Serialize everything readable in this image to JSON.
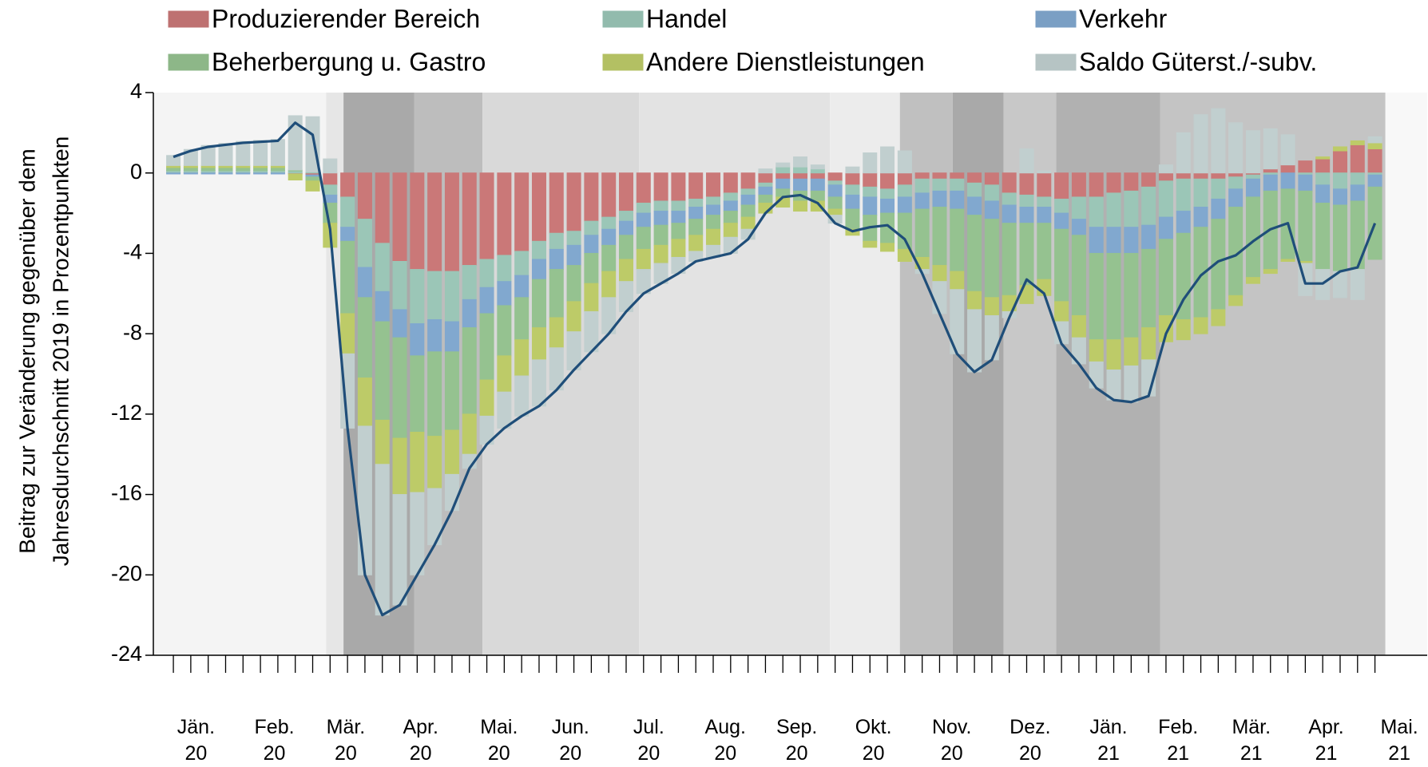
{
  "chart_data": {
    "type": "stacked-bar-line",
    "ylabel": [
      "Beitrag zur Veränderung gegenüber dem",
      "Jahresdurchschnitt 2019 in Prozentpunkten"
    ],
    "categories": [
      null,
      null,
      null,
      null,
      null,
      null,
      null,
      null,
      null,
      null,
      null,
      null,
      null,
      null,
      null,
      null,
      null,
      null,
      null,
      null,
      null,
      null,
      null,
      null,
      null,
      null,
      null,
      null,
      null,
      null,
      null,
      null,
      null,
      null,
      null,
      null,
      null,
      null,
      null,
      null,
      null,
      null,
      null,
      null,
      null,
      null,
      null,
      null,
      null,
      null,
      null,
      null,
      null,
      null,
      null,
      null,
      null,
      null,
      null,
      null,
      null,
      null,
      null,
      null,
      null,
      null,
      null,
      null,
      null,
      null
    ],
    "xlim": [
      -1.15,
      72
    ],
    "xticks": [
      {
        "value": 1.3,
        "label": "Jän. 20"
      },
      {
        "value": 5.8,
        "label": "Feb. 20"
      },
      {
        "value": 9.9,
        "label": "Mär. 20"
      },
      {
        "value": 14.2,
        "label": "Apr. 20"
      },
      {
        "value": 18.7,
        "label": "Mai. 20"
      },
      {
        "value": 22.8,
        "label": "Jun. 20"
      },
      {
        "value": 27.3,
        "label": "Jul. 20"
      },
      {
        "value": 31.7,
        "label": "Aug. 20"
      },
      {
        "value": 35.8,
        "label": "Sep. 20"
      },
      {
        "value": 40.2,
        "label": "Okt. 20"
      },
      {
        "value": 44.7,
        "label": "Nov. 20"
      },
      {
        "value": 49.2,
        "label": "Dez. 20"
      },
      {
        "value": 53.7,
        "label": "Jän. 21"
      },
      {
        "value": 57.7,
        "label": "Feb. 21"
      },
      {
        "value": 61.9,
        "label": "Mär. 21"
      },
      {
        "value": 66.2,
        "label": "Apr. 21"
      },
      {
        "value": 70.4,
        "label": "Mai. 21"
      }
    ],
    "ylim": [
      -24,
      4
    ],
    "yticks": [
      -24,
      -20,
      -16,
      -12,
      -8,
      -4,
      0,
      4
    ],
    "grid": false,
    "shading": [
      {
        "start": -1.15,
        "end": 8.77,
        "color": "#f4f4f4"
      },
      {
        "start": 8.77,
        "end": 9.77,
        "color": "#e6e6e6"
      },
      {
        "start": 9.77,
        "end": 13.84,
        "color": "#a9a9a9"
      },
      {
        "start": 13.84,
        "end": 17.75,
        "color": "#bdbdbd"
      },
      {
        "start": 17.75,
        "end": 26.74,
        "color": "#d9d9d9"
      },
      {
        "start": 26.74,
        "end": 37.7,
        "color": "#e3e3e3"
      },
      {
        "start": 37.7,
        "end": 41.72,
        "color": "#ececec"
      },
      {
        "start": 41.72,
        "end": 44.75,
        "color": "#c0c0c0"
      },
      {
        "start": 44.75,
        "end": 47.68,
        "color": "#a9a9a9"
      },
      {
        "start": 47.68,
        "end": 50.7,
        "color": "#c8c8c8"
      },
      {
        "start": 50.7,
        "end": 56.66,
        "color": "#b1b1b1"
      },
      {
        "start": 56.66,
        "end": 69.6,
        "color": "#c4c4c4"
      },
      {
        "start": 69.6,
        "end": 72,
        "color": "#f8f8f8"
      }
    ],
    "series": [
      {
        "name": "Produzierender Bereich",
        "color": "#e08585",
        "values": [
          0.02,
          0.02,
          0.02,
          0.02,
          0.02,
          0.02,
          0.02,
          -0.05,
          -0.1,
          -0.6,
          -1.2,
          -2.3,
          -3.5,
          -4.4,
          -4.8,
          -4.9,
          -4.9,
          -4.6,
          -4.3,
          -4.1,
          -3.9,
          -3.4,
          -3.0,
          -2.9,
          -2.4,
          -2.2,
          -1.9,
          -1.5,
          -1.4,
          -1.4,
          -1.3,
          -1.2,
          -1.0,
          -0.8,
          -0.5,
          -0.3,
          -0.3,
          -0.3,
          -0.4,
          -0.6,
          -0.7,
          -0.8,
          -0.6,
          -0.3,
          -0.3,
          -0.3,
          -0.5,
          -0.6,
          -1.0,
          -1.1,
          -1.2,
          -1.3,
          -1.2,
          -1.2,
          -1.0,
          -0.9,
          -0.7,
          -0.4,
          -0.3,
          -0.3,
          -0.3,
          -0.2,
          -0.1,
          0.2,
          0.4,
          0.6,
          0.7,
          1.1,
          1.4,
          1.2
        ]
      },
      {
        "name": "Handel",
        "color": "#acdccb",
        "values": [
          0.1,
          0.1,
          0.1,
          0.1,
          0.1,
          0.1,
          0.1,
          0.1,
          0.05,
          -0.5,
          -1.5,
          -2.4,
          -2.4,
          -2.4,
          -2.7,
          -2.4,
          -2.5,
          -1.7,
          -1.4,
          -1.3,
          -1.2,
          -0.9,
          -0.8,
          -0.7,
          -0.7,
          -0.6,
          -0.5,
          -0.5,
          -0.5,
          -0.5,
          -0.4,
          -0.4,
          -0.4,
          -0.3,
          -0.2,
          0.3,
          0.3,
          0.2,
          -0.2,
          -0.5,
          -0.5,
          -0.5,
          -0.6,
          -0.7,
          -0.6,
          -0.6,
          -0.7,
          -0.8,
          -0.6,
          -0.6,
          -0.5,
          -0.7,
          -1.1,
          -1.5,
          -1.7,
          -1.8,
          -1.9,
          -1.8,
          -1.6,
          -1.4,
          -1.0,
          -0.6,
          -0.2,
          -0.1,
          0.0,
          -0.1,
          -0.6,
          -0.8,
          -0.6,
          -0.1
        ]
      },
      {
        "name": "Verkehr",
        "color": "#8fbbe6",
        "values": [
          -0.05,
          -0.05,
          -0.05,
          -0.05,
          -0.05,
          -0.05,
          -0.05,
          0.0,
          -0.1,
          -0.4,
          -0.7,
          -1.5,
          -1.5,
          -1.4,
          -1.6,
          -1.6,
          -1.5,
          -1.4,
          -1.3,
          -1.2,
          -1.1,
          -1.0,
          -1.0,
          -1.0,
          -0.9,
          -0.8,
          -0.7,
          -0.7,
          -0.7,
          -0.6,
          -0.6,
          -0.5,
          -0.5,
          -0.5,
          -0.4,
          -0.5,
          -0.6,
          -0.6,
          -0.6,
          -0.7,
          -0.9,
          -0.7,
          -0.8,
          -0.8,
          -0.8,
          -0.9,
          -0.9,
          -0.9,
          -0.9,
          -0.8,
          -0.8,
          -0.8,
          -0.8,
          -1.3,
          -1.3,
          -1.3,
          -1.2,
          -1.1,
          -1.1,
          -1.0,
          -1.0,
          -0.9,
          -0.9,
          -0.8,
          -0.8,
          -0.8,
          -0.9,
          -0.8,
          -0.8,
          -0.6
        ]
      },
      {
        "name": "Beherbergung u. Gastro",
        "color": "#a6d7a0",
        "values": [
          0.15,
          0.15,
          0.15,
          0.15,
          0.15,
          0.15,
          0.15,
          0.05,
          -0.2,
          -1.0,
          -3.6,
          -4.0,
          -4.9,
          -5.0,
          -3.8,
          -4.2,
          -3.9,
          -4.3,
          -3.3,
          -2.5,
          -2.1,
          -2.4,
          -2.4,
          -1.8,
          -1.5,
          -1.3,
          -1.2,
          -1.1,
          -1.0,
          -0.8,
          -0.8,
          -0.7,
          -0.6,
          -0.6,
          -0.4,
          -0.4,
          -0.5,
          -0.5,
          -0.6,
          -1.0,
          -1.3,
          -1.5,
          -1.8,
          -2.4,
          -2.9,
          -3.1,
          -3.8,
          -3.9,
          -3.6,
          -3.1,
          -2.8,
          -3.6,
          -4.0,
          -4.3,
          -4.3,
          -4.2,
          -3.9,
          -3.8,
          -4.3,
          -4.5,
          -4.5,
          -4.4,
          -4.0,
          -3.9,
          -3.5,
          -3.5,
          -3.3,
          -3.3,
          -3.4,
          -3.6
        ]
      },
      {
        "name": "Andere Dienstleistungen",
        "color": "#d2e274",
        "values": [
          0.1,
          0.1,
          0.1,
          0.1,
          0.1,
          0.1,
          0.1,
          -0.3,
          -0.5,
          -1.2,
          -2.0,
          -2.4,
          -2.2,
          -2.8,
          -3.0,
          -2.6,
          -2.2,
          -2.0,
          -1.8,
          -1.8,
          -1.8,
          -1.6,
          -1.5,
          -1.5,
          -1.4,
          -1.3,
          -1.1,
          -1.0,
          -0.9,
          -0.9,
          -0.8,
          -0.8,
          -0.7,
          -0.6,
          -0.5,
          -0.5,
          -0.5,
          -0.5,
          -0.3,
          -0.3,
          -0.3,
          -0.4,
          -0.6,
          -0.6,
          -0.8,
          -0.9,
          -0.9,
          -0.9,
          -0.8,
          -0.9,
          -0.8,
          -1.0,
          -1.1,
          -1.1,
          -1.5,
          -1.4,
          -1.6,
          -1.3,
          -1.0,
          -0.8,
          -0.8,
          -0.5,
          -0.3,
          -0.2,
          -0.1,
          -0.1,
          0.1,
          0.2,
          0.2,
          0.3
        ]
      },
      {
        "name": "Saldo Güterst./-subv.",
        "color": "#d6e6e6",
        "values": [
          0.5,
          0.8,
          1.0,
          1.1,
          1.2,
          1.25,
          1.3,
          2.7,
          2.75,
          0.7,
          -3.7,
          -7.4,
          -7.5,
          -5.5,
          -4.1,
          -2.8,
          -1.8,
          -0.7,
          -1.4,
          -1.8,
          -2.0,
          -2.3,
          -2.1,
          -1.9,
          -2.0,
          -1.8,
          -1.5,
          -1.2,
          -1.0,
          -0.8,
          -0.5,
          -0.6,
          -0.8,
          -0.5,
          0.2,
          0.2,
          0.5,
          0.2,
          -0.4,
          0.3,
          1.0,
          1.3,
          1.1,
          -0.2,
          -1.6,
          -3.2,
          -3.1,
          -2.2,
          -0.3,
          1.2,
          0.1,
          -1.1,
          -1.3,
          -1.3,
          -1.5,
          -1.8,
          -1.8,
          0.4,
          2.0,
          2.9,
          3.2,
          2.5,
          2.1,
          2.0,
          1.5,
          -1.6,
          -1.5,
          -1.3,
          -1.5,
          0.3
        ]
      }
    ],
    "total_line": {
      "color": "#1f4e79",
      "values": [
        0.8,
        1.1,
        1.3,
        1.4,
        1.5,
        1.55,
        1.6,
        2.5,
        1.9,
        -2.8,
        -12.7,
        -20,
        -22,
        -21.5,
        -20,
        -18.5,
        -16.8,
        -14.7,
        -13.5,
        -12.7,
        -12.1,
        -11.6,
        -10.8,
        -9.8,
        -8.9,
        -8,
        -6.9,
        -6,
        -5.5,
        -5,
        -4.4,
        -4.2,
        -4,
        -3.3,
        -2,
        -1.2,
        -1.1,
        -1.5,
        -2.5,
        -2.9,
        -2.7,
        -2.6,
        -3.3,
        -5,
        -7,
        -9,
        -9.9,
        -9.3,
        -7.2,
        -5.3,
        -6,
        -8.5,
        -9.5,
        -10.7,
        -11.3,
        -11.4,
        -11.1,
        -8,
        -6.3,
        -5.1,
        -4.4,
        -4.1,
        -3.4,
        -2.8,
        -2.5,
        -5.5,
        -5.5,
        -4.9,
        -4.7,
        -2.5
      ]
    }
  }
}
